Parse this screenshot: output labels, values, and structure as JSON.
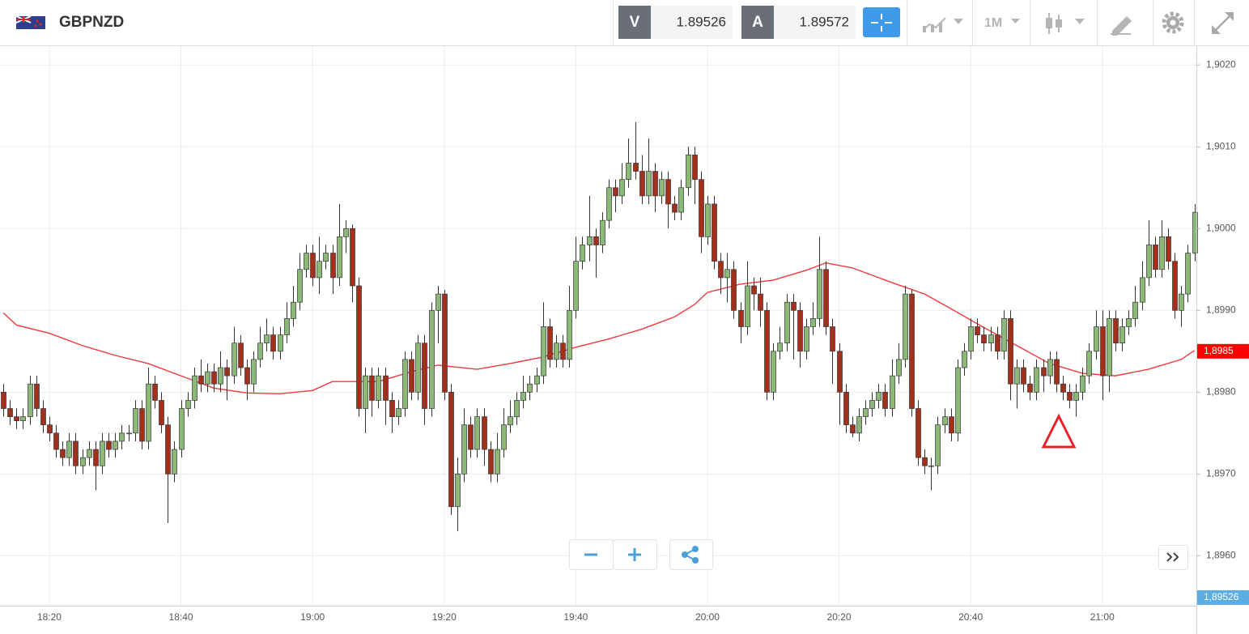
{
  "toolbar": {
    "symbol": "GBPNZD",
    "bid_tag": "V",
    "bid": "1.89526",
    "ask_tag": "A",
    "ask": "1.89572",
    "timeframe": "1M"
  },
  "chart_data": {
    "type": "candlestick",
    "x": [
      1093,
      1094,
      1095,
      1096,
      1097,
      1098,
      1099,
      1100,
      1101,
      1102,
      1103,
      1104,
      1105,
      1106,
      1107,
      1108,
      1109,
      1110,
      1111,
      1112,
      1113,
      1114,
      1115,
      1116,
      1117,
      1118,
      1119,
      1120,
      1121,
      1122,
      1123,
      1124,
      1125,
      1126,
      1127,
      1128,
      1129,
      1130,
      1131,
      1132,
      1133,
      1134,
      1135,
      1136,
      1137,
      1138,
      1139,
      1140,
      1141,
      1142,
      1143,
      1144,
      1145,
      1146,
      1147,
      1148,
      1149,
      1150,
      1151,
      1152,
      1153,
      1154,
      1155,
      1156,
      1157,
      1158,
      1159,
      1160,
      1161,
      1162,
      1163,
      1164,
      1165,
      1166,
      1167,
      1168,
      1169,
      1170,
      1171,
      1172,
      1173,
      1174,
      1175,
      1176,
      1177,
      1178,
      1179,
      1180,
      1181,
      1182,
      1183,
      1184,
      1185,
      1186,
      1187,
      1188,
      1189,
      1190,
      1191,
      1192,
      1193,
      1194,
      1195,
      1196,
      1197,
      1198,
      1199,
      1200,
      1201,
      1202,
      1203,
      1204,
      1205,
      1206,
      1207,
      1208,
      1209,
      1210,
      1211,
      1212,
      1213,
      1214,
      1215,
      1216,
      1217,
      1218,
      1219,
      1220,
      1221,
      1222,
      1223,
      1224,
      1225,
      1226,
      1227,
      1228,
      1229,
      1230,
      1231,
      1232,
      1233,
      1234,
      1235,
      1236,
      1237,
      1238,
      1239,
      1240,
      1241,
      1242,
      1243,
      1244,
      1245,
      1246,
      1247,
      1248,
      1249,
      1250,
      1251,
      1252,
      1253,
      1254,
      1255,
      1256,
      1257,
      1258,
      1259,
      1260,
      1261,
      1262,
      1263,
      1264,
      1265,
      1266,
      1267,
      1268,
      1269,
      1270,
      1271,
      1272,
      1273,
      1274
    ],
    "open": [
      1.898,
      1.8978,
      1.8977,
      1.89765,
      1.8977,
      1.8981,
      1.8978,
      1.8976,
      1.8975,
      1.8973,
      1.8972,
      1.8974,
      1.8971,
      1.8972,
      1.8973,
      1.8971,
      1.8974,
      1.8973,
      1.8974,
      1.8975,
      1.8975,
      1.8978,
      1.8974,
      1.8981,
      1.8979,
      1.8976,
      1.897,
      1.8973,
      1.8978,
      1.8979,
      1.8982,
      1.8981,
      1.89825,
      1.8981,
      1.8983,
      1.8982,
      1.8986,
      1.8983,
      1.8981,
      1.8984,
      1.8986,
      1.8987,
      1.8985,
      1.8987,
      1.8989,
      1.8991,
      1.8995,
      1.8997,
      1.8994,
      1.8996,
      1.8997,
      1.8994,
      1.8999,
      1.9,
      1.8993,
      1.8978,
      1.8982,
      1.8979,
      1.8982,
      1.8979,
      1.8977,
      1.8978,
      1.8984,
      1.898,
      1.8986,
      1.8978,
      1.899,
      1.8992,
      1.898,
      1.8966,
      1.897,
      1.8976,
      1.8973,
      1.8977,
      1.8973,
      1.897,
      1.8973,
      1.8976,
      1.8977,
      1.8979,
      1.898,
      1.8981,
      1.8982,
      1.8988,
      1.8984,
      1.8986,
      1.8984,
      1.899,
      1.8996,
      1.8998,
      1.8999,
      1.8998,
      1.9001,
      1.9005,
      1.9004,
      1.9006,
      1.9008,
      1.9007,
      1.9004,
      1.9007,
      1.9004,
      1.9006,
      1.9003,
      1.9002,
      1.9005,
      1.9009,
      1.9006,
      1.8999,
      1.9003,
      1.8996,
      1.8994,
      1.8995,
      1.899,
      1.8988,
      1.8993,
      1.8992,
      1.899,
      1.898,
      1.8985,
      1.8986,
      1.8991,
      1.899,
      1.8985,
      1.8988,
      1.8989,
      1.8995,
      1.8988,
      1.8985,
      1.898,
      1.8976,
      1.8975,
      1.8977,
      1.8978,
      1.8979,
      1.898,
      1.8978,
      1.8982,
      1.8984,
      1.8992,
      1.8978,
      1.8972,
      1.8971,
      1.8971,
      1.8976,
      1.8977,
      1.8975,
      1.8983,
      1.8985,
      1.8988,
      1.8987,
      1.8986,
      1.8987,
      1.8985,
      1.8989,
      1.8981,
      1.8983,
      1.8981,
      1.898,
      1.8983,
      1.8982,
      1.8984,
      1.8981,
      1.898,
      1.8979,
      1.898,
      1.8982,
      1.8985,
      1.8988,
      1.8982,
      1.8989,
      1.8986,
      1.8988,
      1.8989,
      1.8991,
      1.8994,
      1.8998,
      1.8995,
      1.8999,
      1.8996,
      1.899,
      1.8992,
      1.8997
    ],
    "high": [
      1.8981,
      1.8979,
      1.8978,
      1.8978,
      1.8982,
      1.8982,
      1.8979,
      1.8977,
      1.8976,
      1.8974,
      1.8975,
      1.8975,
      1.8973,
      1.8974,
      1.8974,
      1.8975,
      1.8975,
      1.8975,
      1.8976,
      1.8976,
      1.8979,
      1.8979,
      1.8983,
      1.8982,
      1.898,
      1.8977,
      1.8974,
      1.8979,
      1.898,
      1.8983,
      1.8984,
      1.89835,
      1.89835,
      1.8985,
      1.8984,
      1.8988,
      1.8987,
      1.8984,
      1.8985,
      1.8988,
      1.8989,
      1.8988,
      1.8988,
      1.8991,
      1.8993,
      1.8997,
      1.8998,
      1.8998,
      1.8999,
      1.8998,
      1.8998,
      1.9003,
      1.9001,
      1.90005,
      1.8994,
      1.8983,
      1.8983,
      1.8983,
      1.8983,
      1.898,
      1.8979,
      1.8985,
      1.8985,
      1.8987,
      1.8987,
      1.8991,
      1.8993,
      1.89925,
      1.8981,
      1.8972,
      1.8978,
      1.8977,
      1.8978,
      1.8978,
      1.8974,
      1.8975,
      1.8978,
      1.8979,
      1.898,
      1.8982,
      1.8982,
      1.8983,
      1.8991,
      1.8989,
      1.8987,
      1.8987,
      1.8993,
      1.8999,
      1.8999,
      1.9004,
      1.9,
      1.9002,
      1.9006,
      1.9006,
      1.9008,
      1.9011,
      1.9013,
      1.9009,
      1.9011,
      1.9008,
      1.9007,
      1.9007,
      1.9004,
      1.9006,
      1.901,
      1.901,
      1.9007,
      1.9004,
      1.9004,
      1.8997,
      1.8997,
      1.8996,
      1.8991,
      1.8996,
      1.8994,
      1.8994,
      1.8991,
      1.8986,
      1.8988,
      1.8992,
      1.8992,
      1.8991,
      1.8989,
      1.8991,
      1.8999,
      1.8996,
      1.8989,
      1.8986,
      1.8981,
      1.8977,
      1.8978,
      1.8979,
      1.898,
      1.8981,
      1.8981,
      1.8984,
      1.8986,
      1.8993,
      1.89925,
      1.8979,
      1.8973,
      1.8972,
      1.8977,
      1.8978,
      1.8978,
      1.8984,
      1.8986,
      1.8989,
      1.8989,
      1.8988,
      1.8988,
      1.8988,
      1.899,
      1.899,
      1.8984,
      1.8984,
      1.8982,
      1.8984,
      1.8984,
      1.8985,
      1.8985,
      1.8982,
      1.8981,
      1.8981,
      1.8983,
      1.8986,
      1.899,
      1.899,
      1.899,
      1.899,
      1.8989,
      1.899,
      1.8993,
      1.8996,
      1.9001,
      1.8999,
      1.9001,
      1.9,
      1.8997,
      1.8993,
      1.8998,
      1.9003
    ],
    "low": [
      1.8977,
      1.8976,
      1.89755,
      1.89755,
      1.8976,
      1.8977,
      1.8975,
      1.8974,
      1.8972,
      1.8971,
      1.8971,
      1.897,
      1.897,
      1.8971,
      1.8968,
      1.897,
      1.8972,
      1.8972,
      1.8973,
      1.8974,
      1.8974,
      1.8973,
      1.8973,
      1.8978,
      1.8975,
      1.8964,
      1.8969,
      1.8972,
      1.8977,
      1.8978,
      1.898,
      1.898,
      1.898,
      1.898,
      1.8979,
      1.8981,
      1.8982,
      1.8979,
      1.898,
      1.8983,
      1.8985,
      1.8984,
      1.8984,
      1.8986,
      1.8988,
      1.899,
      1.8994,
      1.8993,
      1.8992,
      1.8995,
      1.8992,
      1.8993,
      1.8997,
      1.8991,
      1.8977,
      1.8975,
      1.8977,
      1.8978,
      1.8976,
      1.8975,
      1.8976,
      1.8977,
      1.8979,
      1.8979,
      1.8976,
      1.8977,
      1.8986,
      1.8979,
      1.8965,
      1.8963,
      1.8969,
      1.8972,
      1.8972,
      1.8971,
      1.8969,
      1.8969,
      1.8972,
      1.8975,
      1.8976,
      1.8978,
      1.8979,
      1.898,
      1.8981,
      1.8983,
      1.8983,
      1.8983,
      1.8983,
      1.8989,
      1.8995,
      1.8996,
      1.8994,
      1.8997,
      1.9,
      1.9002,
      1.9003,
      1.9005,
      1.9006,
      1.9003,
      1.9003,
      1.9002,
      1.9003,
      1.9,
      1.9001,
      1.9001,
      1.9004,
      1.9003,
      1.8997,
      1.8998,
      1.8995,
      1.8992,
      1.8991,
      1.8989,
      1.8986,
      1.8987,
      1.899,
      1.8988,
      1.8979,
      1.8979,
      1.8984,
      1.8985,
      1.8984,
      1.8983,
      1.8984,
      1.8987,
      1.8988,
      1.8987,
      1.8981,
      1.8976,
      1.8975,
      1.89745,
      1.8974,
      1.8976,
      1.8977,
      1.8978,
      1.8977,
      1.8977,
      1.8981,
      1.8983,
      1.8977,
      1.8971,
      1.897,
      1.8968,
      1.897,
      1.8975,
      1.8974,
      1.8974,
      1.8982,
      1.8984,
      1.8986,
      1.8985,
      1.8985,
      1.8984,
      1.8984,
      1.8979,
      1.8978,
      1.898,
      1.8979,
      1.8979,
      1.898,
      1.8981,
      1.898,
      1.8979,
      1.8978,
      1.8977,
      1.8979,
      1.8981,
      1.8984,
      1.8979,
      1.898,
      1.8985,
      1.8985,
      1.8987,
      1.8988,
      1.899,
      1.8993,
      1.8994,
      1.8994,
      1.8995,
      1.8989,
      1.8988,
      1.8991,
      1.8996
    ],
    "close": [
      1.8978,
      1.8977,
      1.89765,
      1.8977,
      1.8981,
      1.8978,
      1.8976,
      1.8975,
      1.8973,
      1.8972,
      1.8974,
      1.8971,
      1.8972,
      1.8973,
      1.8971,
      1.8974,
      1.8973,
      1.8974,
      1.8975,
      1.8975,
      1.8978,
      1.8974,
      1.8981,
      1.8979,
      1.8976,
      1.897,
      1.8973,
      1.8978,
      1.8979,
      1.8982,
      1.8981,
      1.89825,
      1.8981,
      1.8983,
      1.8982,
      1.8986,
      1.8983,
      1.8981,
      1.8984,
      1.8986,
      1.8987,
      1.8985,
      1.8987,
      1.8989,
      1.8991,
      1.8995,
      1.8997,
      1.8994,
      1.8996,
      1.8997,
      1.8994,
      1.8999,
      1.9,
      1.8993,
      1.8978,
      1.8982,
      1.8979,
      1.8982,
      1.8979,
      1.8977,
      1.8978,
      1.8984,
      1.898,
      1.8986,
      1.8978,
      1.899,
      1.8992,
      1.898,
      1.8966,
      1.897,
      1.8976,
      1.8973,
      1.8977,
      1.8973,
      1.897,
      1.8973,
      1.8976,
      1.8977,
      1.8979,
      1.898,
      1.8981,
      1.8982,
      1.8988,
      1.8984,
      1.8986,
      1.8984,
      1.899,
      1.8996,
      1.8998,
      1.8999,
      1.8998,
      1.9001,
      1.9005,
      1.9004,
      1.9006,
      1.9008,
      1.9007,
      1.9004,
      1.9007,
      1.9004,
      1.9006,
      1.9003,
      1.9002,
      1.9005,
      1.9009,
      1.9006,
      1.8999,
      1.9003,
      1.8996,
      1.8994,
      1.8995,
      1.899,
      1.8988,
      1.8993,
      1.8992,
      1.899,
      1.898,
      1.8985,
      1.8986,
      1.8991,
      1.899,
      1.8985,
      1.8988,
      1.8989,
      1.8995,
      1.8988,
      1.8985,
      1.898,
      1.8976,
      1.8975,
      1.8977,
      1.8978,
      1.8979,
      1.898,
      1.8978,
      1.8982,
      1.8984,
      1.8992,
      1.8978,
      1.8972,
      1.8971,
      1.8971,
      1.8976,
      1.8977,
      1.8975,
      1.8983,
      1.8985,
      1.8988,
      1.8987,
      1.8986,
      1.8987,
      1.8985,
      1.8989,
      1.8981,
      1.8983,
      1.8981,
      1.898,
      1.8983,
      1.8982,
      1.8984,
      1.8981,
      1.898,
      1.8979,
      1.898,
      1.8982,
      1.8985,
      1.8988,
      1.8982,
      1.8989,
      1.8986,
      1.8988,
      1.8989,
      1.8991,
      1.8994,
      1.8998,
      1.8995,
      1.8999,
      1.8996,
      1.899,
      1.8992,
      1.8997,
      1.9002
    ],
    "up_color": "#8cb878",
    "down_color": "#a3301c",
    "ma": {
      "color": "#f0393c",
      "x": [
        1093,
        1095,
        1100,
        1105,
        1110,
        1115,
        1120,
        1125,
        1130,
        1135,
        1140,
        1143,
        1150,
        1155,
        1159,
        1165,
        1170,
        1175,
        1180,
        1185,
        1190,
        1195,
        1198,
        1200,
        1205,
        1210,
        1215,
        1218,
        1222,
        1228,
        1233,
        1237,
        1242,
        1247,
        1252,
        1257,
        1262,
        1267,
        1272,
        1274
      ],
      "values": [
        1.89897,
        1.89882,
        1.89872,
        1.89857,
        1.89845,
        1.89835,
        1.8982,
        1.89805,
        1.89799,
        1.89798,
        1.89802,
        1.89813,
        1.89813,
        1.89825,
        1.89833,
        1.89828,
        1.89835,
        1.89843,
        1.89855,
        1.89865,
        1.89877,
        1.89892,
        1.89907,
        1.89922,
        1.89932,
        1.89937,
        1.89949,
        1.89958,
        1.89952,
        1.89934,
        1.8992,
        1.89902,
        1.89879,
        1.89857,
        1.89835,
        1.89823,
        1.8982,
        1.89828,
        1.8984,
        1.89851
      ]
    },
    "price_marker": {
      "value": 1.8985,
      "label": "1,8985",
      "color": "#ff0000"
    },
    "bid_marker": {
      "value": 1.89526,
      "label": "1,89526",
      "color": "#5aaee3"
    },
    "xlim": [
      1092.5,
      1274.3
    ],
    "ylim": [
      1.89539,
      1.90223
    ],
    "xticks": [
      {
        "value": 1100,
        "label": "18:20"
      },
      {
        "value": 1120,
        "label": "18:40"
      },
      {
        "value": 1140,
        "label": "19:00"
      },
      {
        "value": 1160,
        "label": "19:20"
      },
      {
        "value": 1180,
        "label": "19:40"
      },
      {
        "value": 1200,
        "label": "20:00"
      },
      {
        "value": 1220,
        "label": "20:20"
      },
      {
        "value": 1240,
        "label": "20:40"
      },
      {
        "value": 1260,
        "label": "21:00"
      }
    ],
    "yticks": [
      {
        "value": 1.896,
        "label": "1,8960"
      },
      {
        "value": 1.897,
        "label": "1,8970"
      },
      {
        "value": 1.898,
        "label": "1,8980"
      },
      {
        "value": 1.899,
        "label": "1,8990"
      },
      {
        "value": 1.9,
        "label": "1,9000"
      },
      {
        "value": 1.901,
        "label": "1,9010"
      },
      {
        "value": 1.902,
        "label": "1,9020"
      }
    ],
    "grid": true
  }
}
